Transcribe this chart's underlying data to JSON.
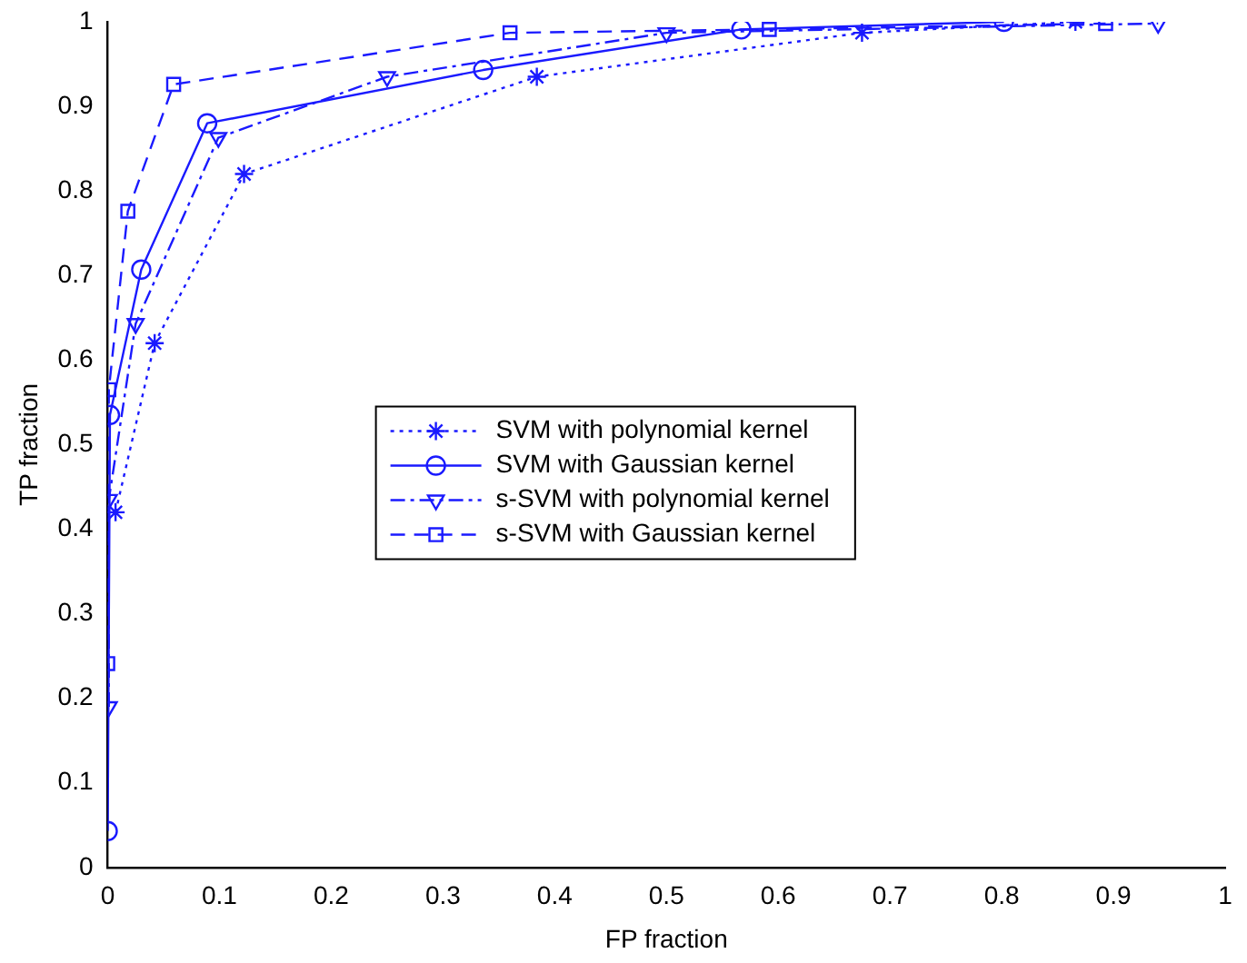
{
  "chart_data": {
    "type": "line",
    "xlabel": "FP fraction",
    "ylabel": "TP fraction",
    "xlim": [
      0,
      1
    ],
    "ylim": [
      0,
      1
    ],
    "xticks": [
      0,
      0.1,
      0.2,
      0.3,
      0.4,
      0.5,
      0.6,
      0.7,
      0.8,
      0.9,
      1
    ],
    "yticks": [
      0,
      0.1,
      0.2,
      0.3,
      0.4,
      0.5,
      0.6,
      0.7,
      0.8,
      0.9,
      1
    ],
    "grid": false,
    "legend": "center",
    "series": [
      {
        "name": "SVM with polynomial kernel",
        "color": "#1a1aff",
        "marker": "cross",
        "line_style": "dotted",
        "x": [
          0.007,
          0.042,
          0.122,
          0.384,
          0.675,
          0.866
        ],
        "values": [
          0.42,
          0.62,
          0.82,
          0.935,
          0.987,
          1.0
        ]
      },
      {
        "name": "SVM with Gaussian kernel",
        "color": "#1a1aff",
        "marker": "circle",
        "line_style": "solid",
        "x": [
          0,
          0.002,
          0.03,
          0.089,
          0.336,
          0.567,
          0.802
        ],
        "values": [
          0.043,
          0.535,
          0.707,
          0.88,
          0.943,
          0.991,
          1.0
        ]
      },
      {
        "name": "s-SVM with polynomial kernel",
        "color": "#1a1aff",
        "marker": "triangle",
        "line_style": "dashdot",
        "x": [
          0.001,
          0.001,
          0.025,
          0.099,
          0.25,
          0.5,
          0.94
        ],
        "values": [
          0.19,
          0.435,
          0.643,
          0.863,
          0.935,
          0.987,
          0.998
        ]
      },
      {
        "name": "s-SVM with Gaussian kernel",
        "color": "#1a1aff",
        "marker": "square",
        "line_style": "dashed",
        "x": [
          0,
          0.001,
          0.018,
          0.059,
          0.36,
          0.592,
          0.893
        ],
        "values": [
          0.241,
          0.565,
          0.776,
          0.926,
          0.987,
          0.991,
          0.998
        ]
      }
    ]
  }
}
